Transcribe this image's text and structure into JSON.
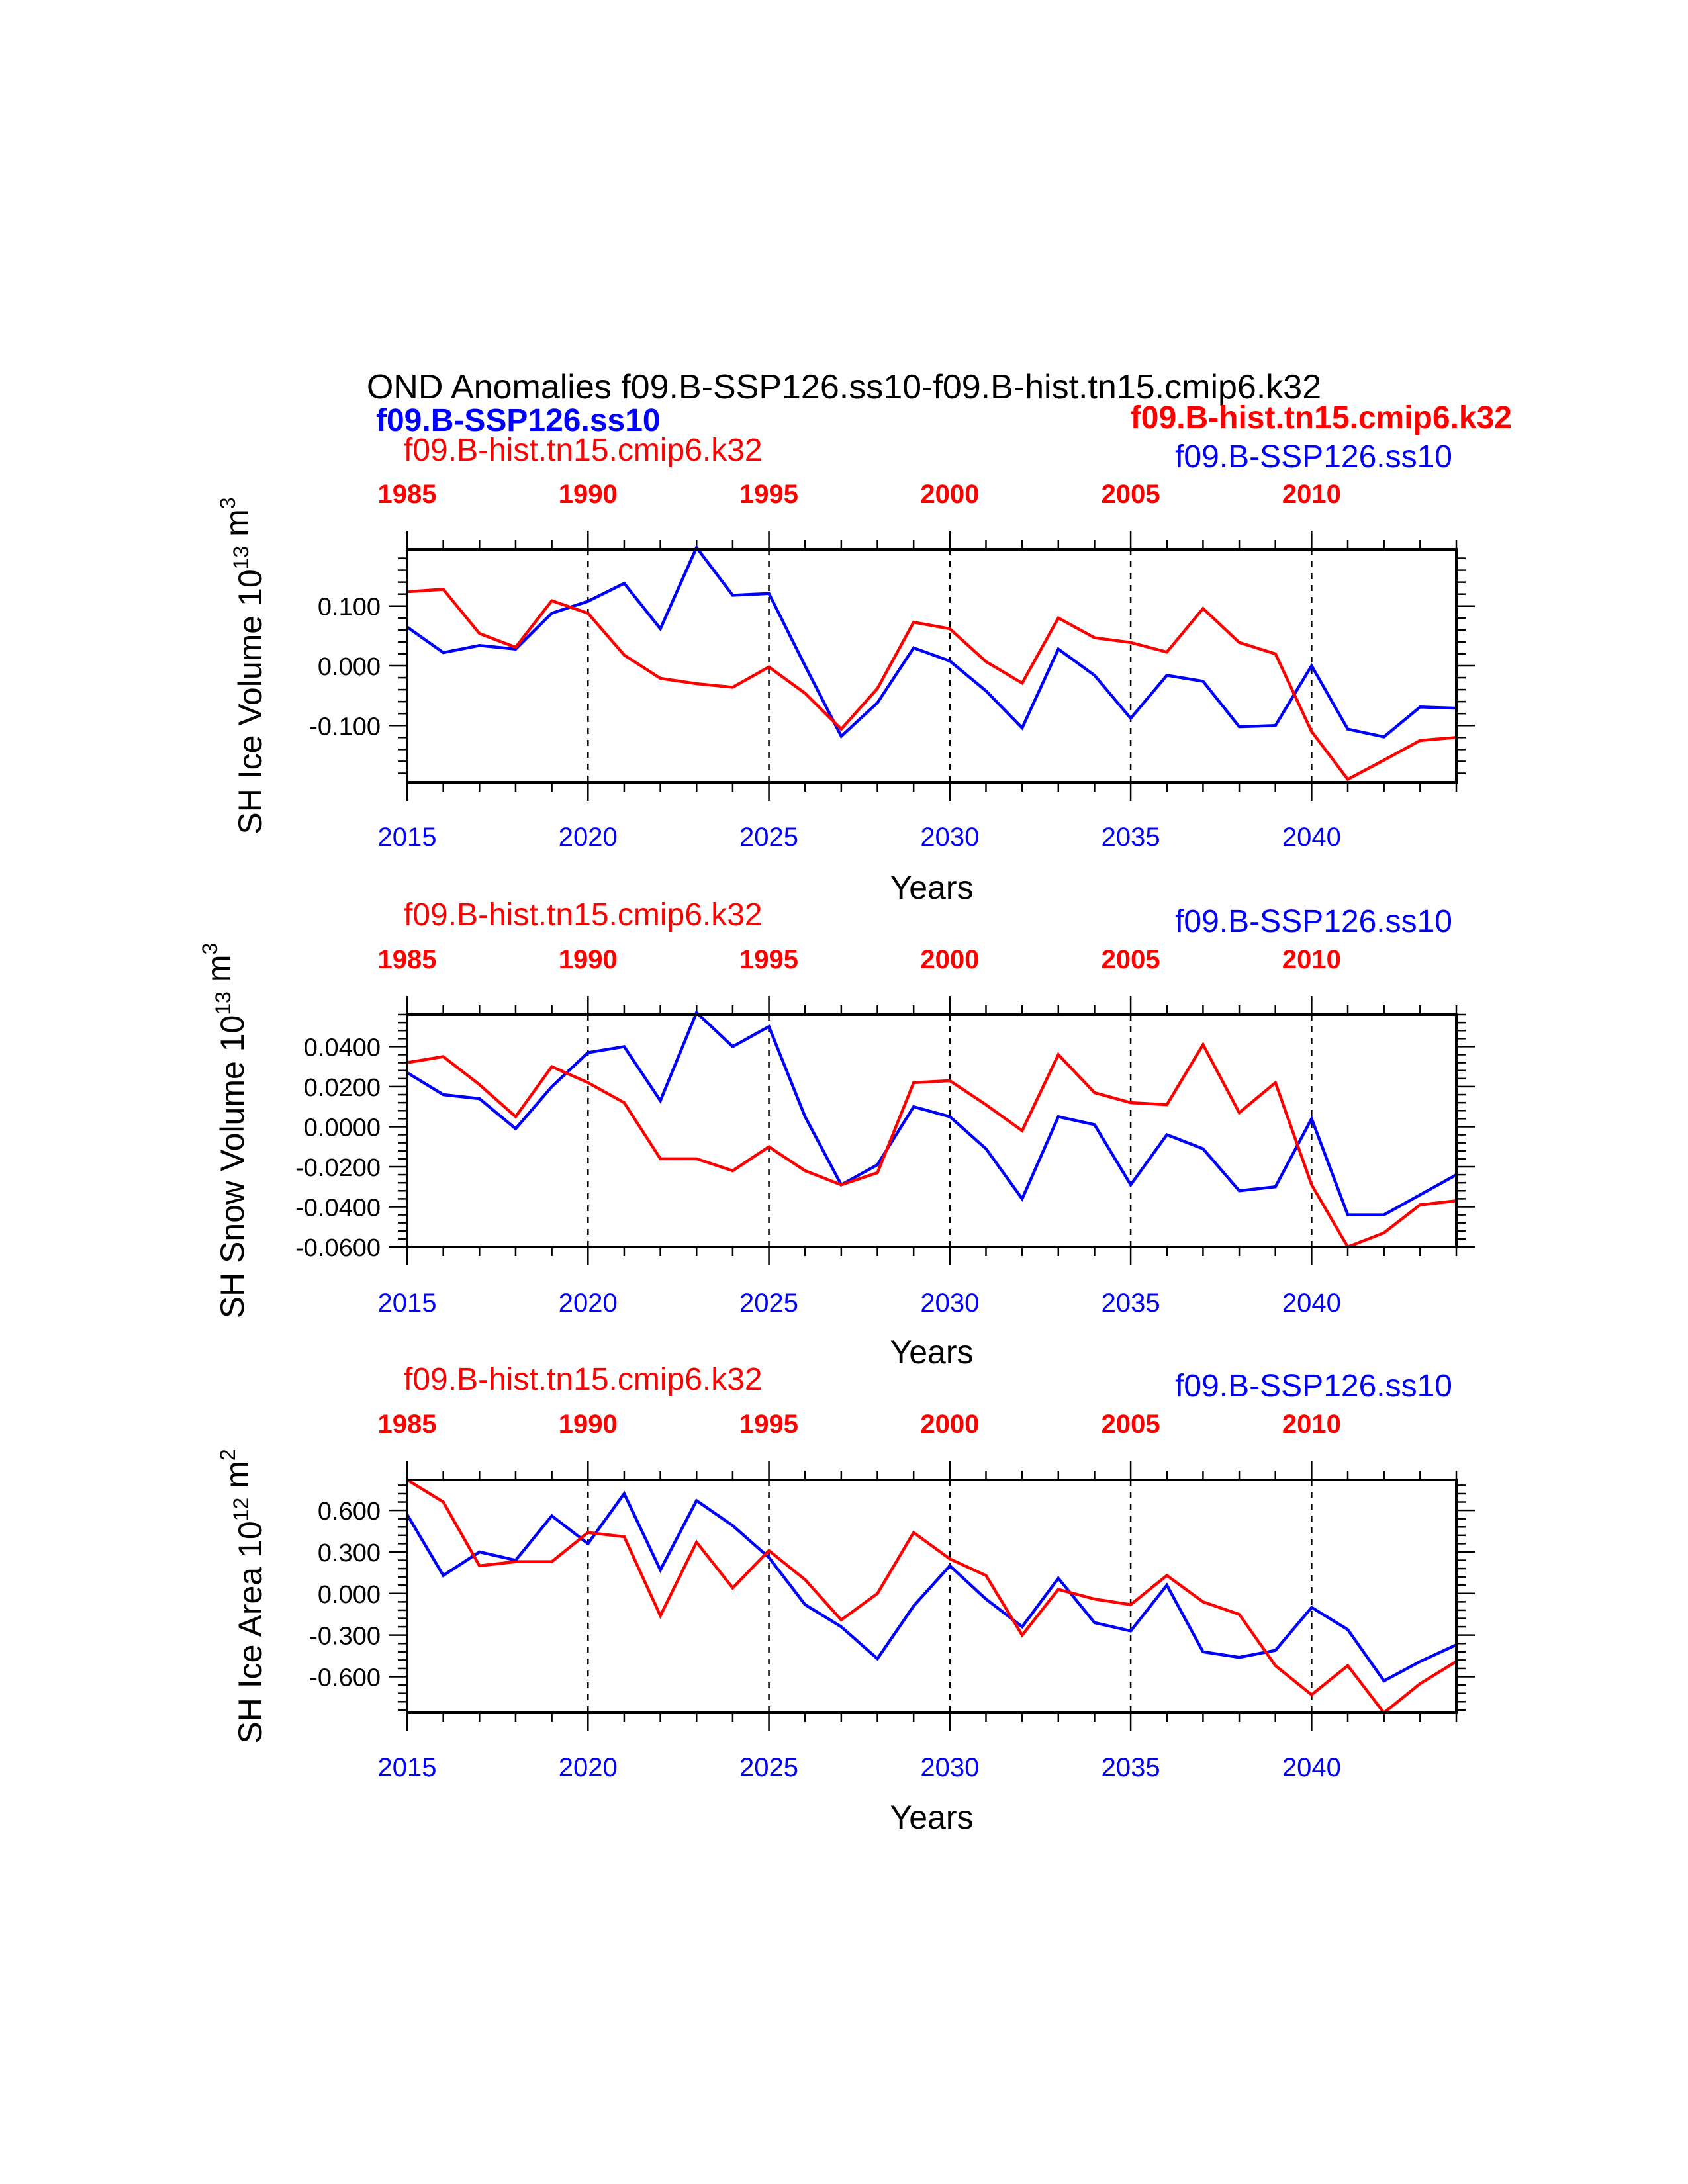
{
  "figure": {
    "title": "OND Anomalies f09.B-SSP126.ss10-f09.B-hist.tn15.cmip6.k32",
    "header_left": "f09.B-SSP126.ss10",
    "header_right": "f09.B-hist.tn15.cmip6.k32"
  },
  "colors": {
    "ssp": "#0000ff",
    "hist": "#ff0000",
    "axes": "#000000"
  },
  "chart_data": [
    {
      "type": "line",
      "ylabel": "SH Ice Volume 10^13 m^3",
      "xlabel": "Years",
      "label_hist": "f09.B-hist.tn15.cmip6.k32",
      "label_ssp": "f09.B-SSP126.ss10",
      "ylim": [
        -0.195,
        0.195
      ],
      "yticks": [
        -0.1,
        0.0,
        0.1
      ],
      "yticklabels": [
        "-0.100",
        "0.000",
        "0.100"
      ],
      "xlim_bottom": [
        2015,
        2044
      ],
      "xticks_bottom": [
        2015,
        2020,
        2025,
        2030,
        2035,
        2040
      ],
      "xticks_top": [
        1985,
        1990,
        1995,
        2000,
        2005,
        2010
      ],
      "x_bottom": [
        2015,
        2016,
        2017,
        2018,
        2019,
        2020,
        2021,
        2022,
        2023,
        2024,
        2025,
        2026,
        2027,
        2028,
        2029,
        2030,
        2031,
        2032,
        2033,
        2034,
        2035,
        2036,
        2037,
        2038,
        2039,
        2040,
        2041,
        2042,
        2043,
        2044
      ],
      "series": [
        {
          "name": "f09.B-SSP126.ss10",
          "values": [
            0.065,
            0.022,
            0.034,
            0.028,
            0.088,
            0.108,
            0.138,
            0.062,
            0.198,
            0.118,
            0.121,
            0.0,
            -0.118,
            -0.062,
            0.03,
            0.008,
            -0.042,
            -0.104,
            0.028,
            -0.016,
            -0.088,
            -0.016,
            -0.026,
            -0.102,
            -0.1,
            0.0,
            -0.106,
            -0.119,
            -0.069,
            -0.071
          ]
        },
        {
          "name": "f09.B-hist.tn15.cmip6.k32",
          "values": [
            0.124,
            0.128,
            0.054,
            0.031,
            0.109,
            0.088,
            0.018,
            -0.021,
            -0.03,
            -0.036,
            -0.002,
            -0.046,
            -0.106,
            -0.038,
            0.073,
            0.062,
            0.007,
            -0.029,
            0.08,
            0.047,
            0.039,
            0.023,
            0.096,
            0.039,
            0.02,
            -0.11,
            -0.19,
            -0.158,
            -0.125,
            -0.12
          ]
        }
      ]
    },
    {
      "type": "line",
      "ylabel": "SH Snow Volume 10^13 m^3",
      "xlabel": "Years",
      "label_hist": "f09.B-hist.tn15.cmip6.k32",
      "label_ssp": "f09.B-SSP126.ss10",
      "ylim": [
        -0.06,
        0.056
      ],
      "yticks": [
        -0.06,
        -0.04,
        -0.02,
        0.0,
        0.02,
        0.04
      ],
      "yticklabels": [
        "-0.0600",
        "-0.0400",
        "-0.0200",
        "0.0000",
        "0.0200",
        "0.0400"
      ],
      "xlim_bottom": [
        2015,
        2044
      ],
      "xticks_bottom": [
        2015,
        2020,
        2025,
        2030,
        2035,
        2040
      ],
      "xticks_top": [
        1985,
        1990,
        1995,
        2000,
        2005,
        2010
      ],
      "x_bottom": [
        2015,
        2016,
        2017,
        2018,
        2019,
        2020,
        2021,
        2022,
        2023,
        2024,
        2025,
        2026,
        2027,
        2028,
        2029,
        2030,
        2031,
        2032,
        2033,
        2034,
        2035,
        2036,
        2037,
        2038,
        2039,
        2040,
        2041,
        2042,
        2043,
        2044
      ],
      "series": [
        {
          "name": "f09.B-SSP126.ss10",
          "values": [
            0.027,
            0.016,
            0.014,
            -0.001,
            0.02,
            0.037,
            0.04,
            0.013,
            0.057,
            0.04,
            0.05,
            0.005,
            -0.029,
            -0.019,
            0.01,
            0.005,
            -0.011,
            -0.036,
            0.005,
            0.001,
            -0.029,
            -0.004,
            -0.011,
            -0.032,
            -0.03,
            0.004,
            -0.044,
            -0.044,
            -0.034,
            -0.024
          ]
        },
        {
          "name": "f09.B-hist.tn15.cmip6.k32",
          "values": [
            0.032,
            0.035,
            0.021,
            0.005,
            0.03,
            0.022,
            0.012,
            -0.016,
            -0.016,
            -0.022,
            -0.01,
            -0.022,
            -0.029,
            -0.023,
            0.022,
            0.023,
            0.011,
            -0.002,
            0.036,
            0.017,
            0.012,
            0.011,
            0.041,
            0.007,
            0.022,
            -0.029,
            -0.06,
            -0.053,
            -0.039,
            -0.037
          ]
        }
      ]
    },
    {
      "type": "line",
      "ylabel": "SH Ice Area 10^12 m^2",
      "xlabel": "Years",
      "label_hist": "f09.B-hist.tn15.cmip6.k32",
      "label_ssp": "f09.B-SSP126.ss10",
      "ylim": [
        -0.86,
        0.82
      ],
      "yticks": [
        -0.6,
        -0.3,
        0.0,
        0.3,
        0.6
      ],
      "yticklabels": [
        "-0.600",
        "-0.300",
        "0.000",
        "0.300",
        "0.600"
      ],
      "xlim_bottom": [
        2015,
        2044
      ],
      "xticks_bottom": [
        2015,
        2020,
        2025,
        2030,
        2035,
        2040
      ],
      "xticks_top": [
        1985,
        1990,
        1995,
        2000,
        2005,
        2010
      ],
      "x_bottom": [
        2015,
        2016,
        2017,
        2018,
        2019,
        2020,
        2021,
        2022,
        2023,
        2024,
        2025,
        2026,
        2027,
        2028,
        2029,
        2030,
        2031,
        2032,
        2033,
        2034,
        2035,
        2036,
        2037,
        2038,
        2039,
        2040,
        2041,
        2042,
        2043,
        2044
      ],
      "series": [
        {
          "name": "f09.B-SSP126.ss10",
          "values": [
            0.57,
            0.13,
            0.3,
            0.24,
            0.56,
            0.36,
            0.72,
            0.17,
            0.67,
            0.49,
            0.26,
            -0.08,
            -0.24,
            -0.47,
            -0.09,
            0.2,
            -0.04,
            -0.24,
            0.11,
            -0.21,
            -0.27,
            0.06,
            -0.42,
            -0.46,
            -0.41,
            -0.1,
            -0.26,
            -0.63,
            -0.49,
            -0.37
          ]
        },
        {
          "name": "f09.B-hist.tn15.cmip6.k32",
          "values": [
            0.82,
            0.66,
            0.2,
            0.23,
            0.23,
            0.44,
            0.41,
            -0.16,
            0.37,
            0.04,
            0.31,
            0.1,
            -0.19,
            0.0,
            0.44,
            0.25,
            0.13,
            -0.3,
            0.03,
            -0.04,
            -0.08,
            0.13,
            -0.06,
            -0.15,
            -0.52,
            -0.73,
            -0.52,
            -0.86,
            -0.65,
            -0.49
          ]
        }
      ]
    }
  ]
}
